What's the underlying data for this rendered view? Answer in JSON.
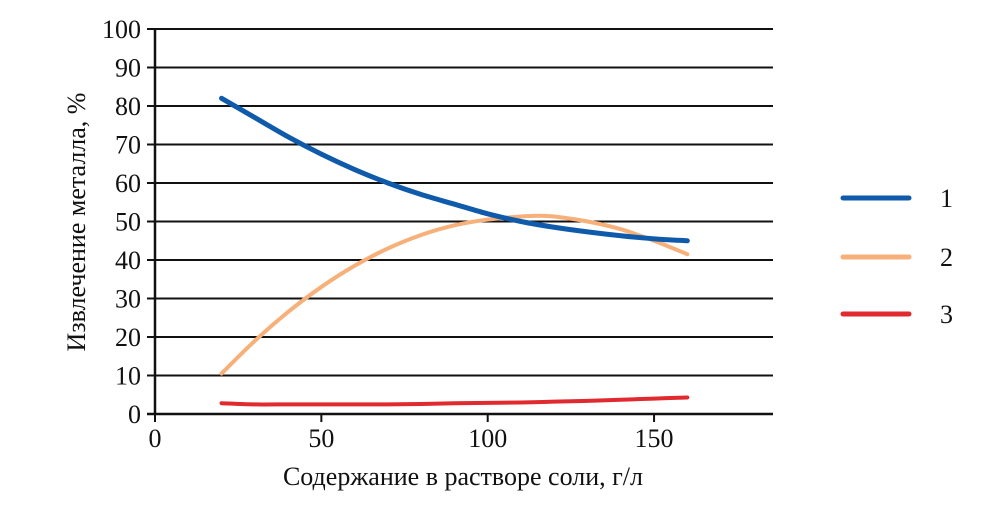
{
  "chart_data": {
    "type": "line",
    "title": "",
    "xlabel": "Содержание в растворе соли, г/л",
    "ylabel": "Извлечение металла, %",
    "xlim": [
      0,
      185
    ],
    "ylim": [
      0,
      100
    ],
    "xticks": [
      0,
      50,
      100,
      150
    ],
    "yticks": [
      0,
      10,
      20,
      30,
      40,
      50,
      60,
      70,
      80,
      90,
      100
    ],
    "grid": "horizontal",
    "legend_position": "right",
    "series": [
      {
        "name": "1",
        "color": "#0F5AAA",
        "x": [
          20,
          30,
          40,
          50,
          60,
          70,
          80,
          90,
          100,
          110,
          120,
          130,
          140,
          150,
          160
        ],
        "y": [
          82,
          77,
          72,
          67.5,
          63.5,
          60,
          57,
          54.5,
          52,
          50,
          48.5,
          47.3,
          46.3,
          45.5,
          45
        ]
      },
      {
        "name": "2",
        "color": "#F7B079",
        "x": [
          20,
          30,
          40,
          50,
          60,
          70,
          80,
          90,
          100,
          110,
          115,
          120,
          130,
          140,
          150,
          160
        ],
        "y": [
          10.5,
          19,
          26.5,
          33,
          38.5,
          43,
          46.5,
          49,
          50.5,
          51.3,
          51.5,
          51.3,
          50,
          48,
          45,
          41.5
        ]
      },
      {
        "name": "3",
        "color": "#E02A30",
        "x": [
          20,
          30,
          40,
          50,
          60,
          70,
          80,
          90,
          100,
          110,
          120,
          130,
          140,
          150,
          160
        ],
        "y": [
          2.8,
          2.5,
          2.5,
          2.5,
          2.5,
          2.5,
          2.6,
          2.8,
          2.9,
          3.0,
          3.2,
          3.4,
          3.7,
          4.0,
          4.3
        ]
      }
    ]
  },
  "legend": {
    "items": [
      {
        "label": "1",
        "color": "#0F5AAA"
      },
      {
        "label": "2",
        "color": "#F7B079"
      },
      {
        "label": "3",
        "color": "#E02A30"
      }
    ]
  },
  "axes": {
    "x_title": "Содержание в растворе соли, г/л",
    "y_title": "Извлечение металла, %"
  }
}
